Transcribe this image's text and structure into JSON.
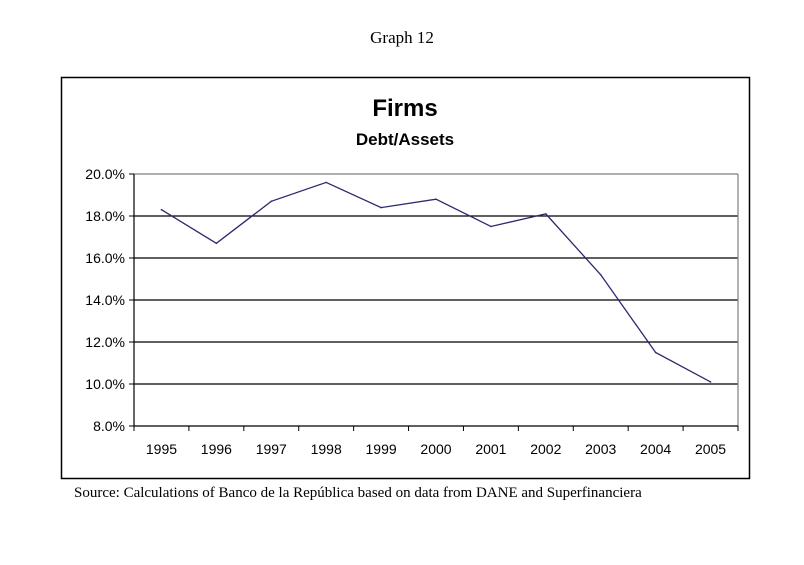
{
  "figure": {
    "label": "Graph 12",
    "source": "Source: Calculations of Banco de la República based on data from DANE and Superfinanciera"
  },
  "chart_data": {
    "type": "line",
    "title": "Firms",
    "subtitle": "Debt/Assets",
    "xlabel": "",
    "ylabel": "",
    "categories": [
      "1995",
      "1996",
      "1997",
      "1998",
      "1999",
      "2000",
      "2001",
      "2002",
      "2003",
      "2004",
      "2005"
    ],
    "series": [
      {
        "name": "Debt/Assets",
        "color": "#2b2a6e",
        "values": [
          18.3,
          16.7,
          18.7,
          19.6,
          18.4,
          18.8,
          17.5,
          18.1,
          15.2,
          11.5,
          10.1
        ]
      }
    ],
    "ylim": [
      8.0,
      20.0
    ],
    "yticks": [
      8.0,
      10.0,
      12.0,
      14.0,
      16.0,
      18.0,
      20.0
    ],
    "ytick_labels": [
      "8.0%",
      "10.0%",
      "12.0%",
      "14.0%",
      "16.0%",
      "18.0%",
      "20.0%"
    ],
    "grid": true,
    "legend": "none"
  }
}
